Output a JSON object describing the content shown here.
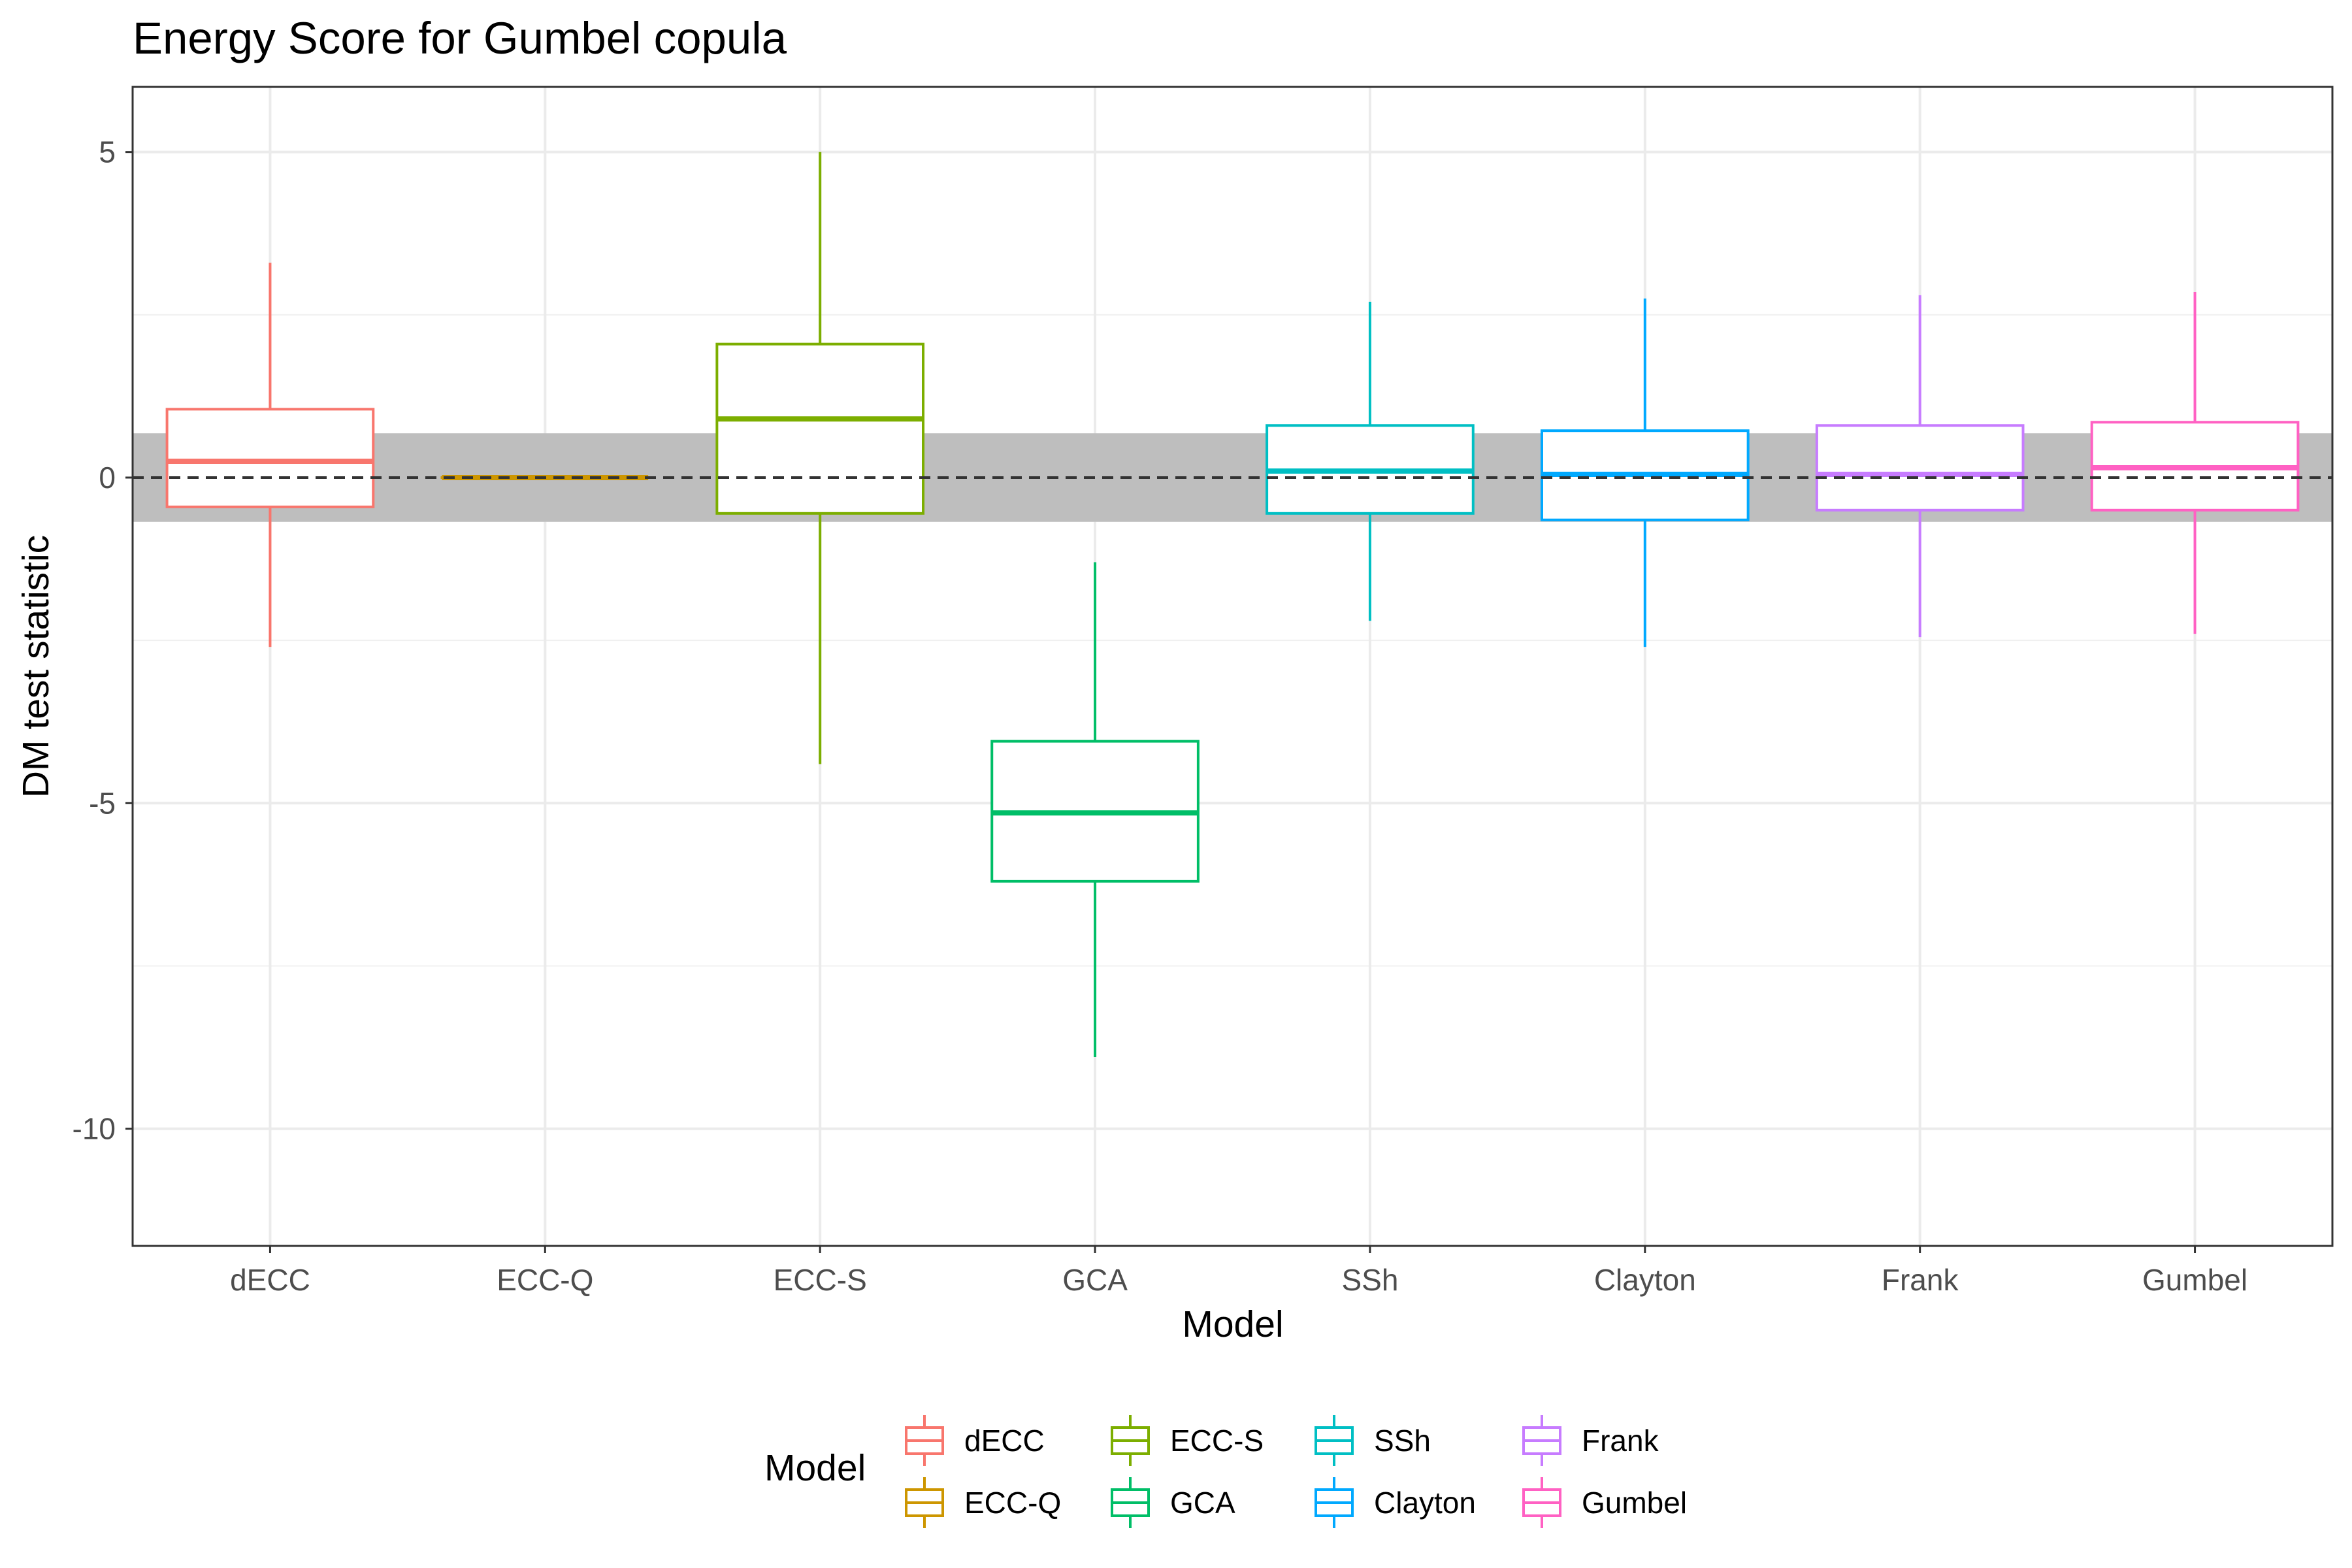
{
  "chart_data": {
    "type": "box",
    "title": "Energy Score for Gumbel copula",
    "xlabel": "Model",
    "ylabel": "DM test statistic",
    "ylim": [
      -11.8,
      6.0
    ],
    "yticks": [
      5,
      0,
      -5,
      -10
    ],
    "ytick_labels": [
      "5",
      "0",
      "-5",
      "-10"
    ],
    "reference_line_y": 0,
    "shaded_band": [
      -0.68,
      0.68
    ],
    "grid": true,
    "legend_title": "Model",
    "legend_position": "bottom",
    "categories": [
      "dECC",
      "ECC-Q",
      "ECC-S",
      "GCA",
      "SSh",
      "Clayton",
      "Frank",
      "Gumbel"
    ],
    "series": [
      {
        "name": "dECC",
        "color": "#F8766D",
        "min": -2.6,
        "q1": -0.45,
        "median": 0.25,
        "q3": 1.05,
        "max": 3.3
      },
      {
        "name": "ECC-Q",
        "color": "#CD9600",
        "min": 0.0,
        "q1": 0.0,
        "median": 0.0,
        "q3": 0.0,
        "max": 0.0
      },
      {
        "name": "ECC-S",
        "color": "#7CAE00",
        "min": -4.4,
        "q1": -0.55,
        "median": 0.9,
        "q3": 2.05,
        "max": 5.0
      },
      {
        "name": "GCA",
        "color": "#00BE67",
        "min": -8.9,
        "q1": -6.2,
        "median": -5.15,
        "q3": -4.05,
        "max": -1.3
      },
      {
        "name": "SSh",
        "color": "#00BFC4",
        "min": -2.2,
        "q1": -0.55,
        "median": 0.1,
        "q3": 0.8,
        "max": 2.7
      },
      {
        "name": "Clayton",
        "color": "#00A9FF",
        "min": -2.6,
        "q1": -0.65,
        "median": 0.05,
        "q3": 0.72,
        "max": 2.75
      },
      {
        "name": "Frank",
        "color": "#C77CFF",
        "min": -2.45,
        "q1": -0.5,
        "median": 0.05,
        "q3": 0.8,
        "max": 2.8
      },
      {
        "name": "Gumbel",
        "color": "#FF61C3",
        "min": -2.4,
        "q1": -0.5,
        "median": 0.15,
        "q3": 0.85,
        "max": 2.85
      }
    ]
  }
}
